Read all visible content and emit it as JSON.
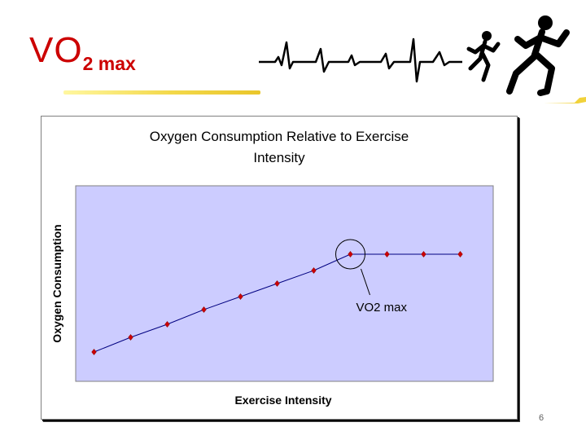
{
  "slide": {
    "title_main": "VO",
    "title_sub": "2 max",
    "page_number": "6",
    "title_color": "#cc0000"
  },
  "decorations": {
    "heartbeat": "ekg-line",
    "runners": "running-figures"
  },
  "chart_data": {
    "type": "line",
    "title": "Oxygen Consumption Relative to Exercise Intensity",
    "title_lines": [
      "Oxygen Consumption Relative to Exercise",
      "Intensity"
    ],
    "xlabel": "Exercise Intensity",
    "ylabel": "Oxygen Consumption",
    "x": [
      1,
      2,
      3,
      4,
      5,
      6,
      7,
      8,
      9,
      10,
      11
    ],
    "series": [
      {
        "values": [
          1.0,
          1.9,
          2.7,
          3.6,
          4.4,
          5.2,
          6.0,
          7.0,
          7.0,
          7.0,
          7.0
        ]
      }
    ],
    "xlim": [
      0.5,
      11.9
    ],
    "ylim": [
      -0.8,
      11.2
    ],
    "grid": false,
    "legend": "none",
    "plot_bg": "#ccccff",
    "line_color": "#000080",
    "marker_color": "#cc0000",
    "annotation": {
      "text": "VO2 max",
      "target_index": 7
    }
  }
}
